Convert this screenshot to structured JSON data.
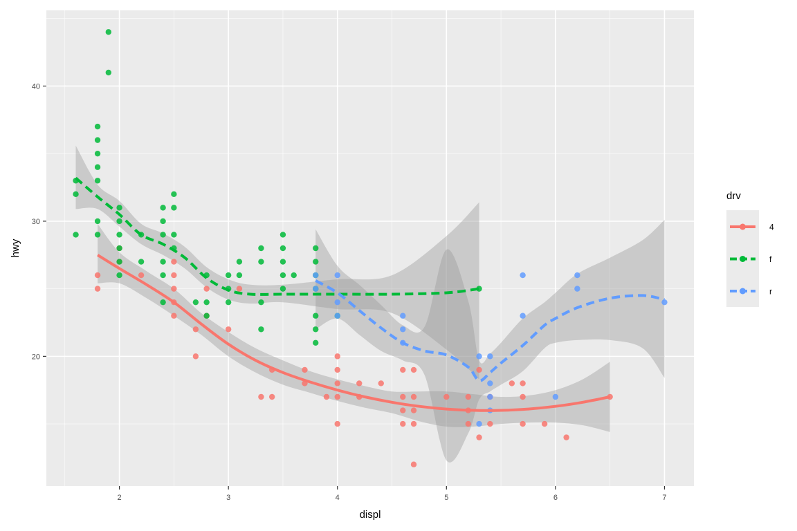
{
  "chart_data": {
    "type": "scatter",
    "xlabel": "displ",
    "ylabel": "hwy",
    "xlim": [
      1.33,
      7.27
    ],
    "ylim": [
      10.4,
      45.6
    ],
    "x_ticks": [
      2,
      3,
      4,
      5,
      6,
      7
    ],
    "y_ticks": [
      20,
      30,
      40
    ],
    "grid": true,
    "legend": {
      "title": "drv",
      "placement": "right",
      "entries": [
        {
          "label": "4",
          "color": "#F8766D",
          "dash": "solid"
        },
        {
          "label": "f",
          "color": "#00BA38",
          "dash": "dashed"
        },
        {
          "label": "r",
          "color": "#619CFF",
          "dash": "dashed"
        }
      ]
    },
    "band_color": "#999999",
    "series": [
      {
        "name": "4",
        "color": "#F8766D",
        "points": [
          [
            1.8,
            26
          ],
          [
            1.8,
            25
          ],
          [
            2.0,
            28
          ],
          [
            2.0,
            27
          ],
          [
            2.2,
            26
          ],
          [
            2.5,
            27
          ],
          [
            2.5,
            26
          ],
          [
            2.5,
            25
          ],
          [
            2.5,
            24
          ],
          [
            2.5,
            23
          ],
          [
            2.7,
            22
          ],
          [
            2.7,
            20
          ],
          [
            2.8,
            25
          ],
          [
            2.8,
            23
          ],
          [
            3.0,
            22
          ],
          [
            3.1,
            25
          ],
          [
            3.3,
            17
          ],
          [
            3.4,
            19
          ],
          [
            3.4,
            17
          ],
          [
            3.7,
            19
          ],
          [
            3.7,
            18
          ],
          [
            3.9,
            17
          ],
          [
            4.0,
            20
          ],
          [
            4.0,
            19
          ],
          [
            4.0,
            18
          ],
          [
            4.0,
            17
          ],
          [
            4.0,
            15
          ],
          [
            4.2,
            18
          ],
          [
            4.2,
            17
          ],
          [
            4.4,
            18
          ],
          [
            4.6,
            19
          ],
          [
            4.6,
            17
          ],
          [
            4.6,
            16
          ],
          [
            4.6,
            15
          ],
          [
            4.7,
            19
          ],
          [
            4.7,
            17
          ],
          [
            4.7,
            16
          ],
          [
            4.7,
            15
          ],
          [
            4.7,
            12
          ],
          [
            5.0,
            17
          ],
          [
            5.2,
            17
          ],
          [
            5.2,
            16
          ],
          [
            5.2,
            15
          ],
          [
            5.3,
            19
          ],
          [
            5.3,
            14
          ],
          [
            5.4,
            17
          ],
          [
            5.4,
            15
          ],
          [
            5.6,
            18
          ],
          [
            5.7,
            18
          ],
          [
            5.7,
            17
          ],
          [
            5.7,
            15
          ],
          [
            5.9,
            15
          ],
          [
            6.1,
            14
          ],
          [
            6.5,
            17
          ]
        ],
        "smooth": [
          [
            1.8,
            27.5
          ],
          [
            2.0,
            26.5
          ],
          [
            2.25,
            25.3
          ],
          [
            2.5,
            24.0
          ],
          [
            2.75,
            22.4
          ],
          [
            3.0,
            20.9
          ],
          [
            3.25,
            19.7
          ],
          [
            3.5,
            18.8
          ],
          [
            3.75,
            18.1
          ],
          [
            4.0,
            17.5
          ],
          [
            4.25,
            17.0
          ],
          [
            4.5,
            16.6
          ],
          [
            4.75,
            16.3
          ],
          [
            5.0,
            16.1
          ],
          [
            5.25,
            16.0
          ],
          [
            5.5,
            16.0
          ],
          [
            5.75,
            16.1
          ],
          [
            6.0,
            16.3
          ],
          [
            6.25,
            16.6
          ],
          [
            6.5,
            17.0
          ]
        ],
        "band": [
          [
            1.8,
            25.4,
            29.8
          ],
          [
            2.0,
            25.4,
            27.7
          ],
          [
            2.25,
            24.3,
            26.3
          ],
          [
            2.5,
            23.0,
            25.0
          ],
          [
            2.75,
            21.6,
            23.2
          ],
          [
            3.0,
            20.0,
            21.8
          ],
          [
            3.25,
            18.8,
            20.6
          ],
          [
            3.5,
            17.9,
            19.7
          ],
          [
            3.75,
            17.3,
            18.9
          ],
          [
            4.0,
            16.7,
            18.3
          ],
          [
            4.25,
            16.2,
            17.8
          ],
          [
            4.5,
            15.8,
            17.4
          ],
          [
            4.75,
            15.2,
            17.4
          ],
          [
            5.0,
            14.8,
            17.4
          ],
          [
            5.25,
            14.8,
            17.2
          ],
          [
            5.5,
            15.0,
            17.0
          ],
          [
            5.75,
            15.1,
            17.1
          ],
          [
            6.0,
            15.1,
            17.5
          ],
          [
            6.25,
            14.9,
            18.3
          ],
          [
            6.5,
            14.4,
            19.6
          ]
        ]
      },
      {
        "name": "f",
        "color": "#00BA38",
        "points": [
          [
            1.6,
            33
          ],
          [
            1.6,
            32
          ],
          [
            1.6,
            29
          ],
          [
            1.8,
            37
          ],
          [
            1.8,
            36
          ],
          [
            1.8,
            35
          ],
          [
            1.8,
            34
          ],
          [
            1.8,
            33
          ],
          [
            1.8,
            30
          ],
          [
            1.8,
            29
          ],
          [
            1.9,
            44
          ],
          [
            1.9,
            41
          ],
          [
            2.0,
            31
          ],
          [
            2.0,
            30
          ],
          [
            2.0,
            29
          ],
          [
            2.0,
            28
          ],
          [
            2.0,
            27
          ],
          [
            2.0,
            26
          ],
          [
            2.2,
            29
          ],
          [
            2.2,
            27
          ],
          [
            2.4,
            31
          ],
          [
            2.4,
            30
          ],
          [
            2.4,
            29
          ],
          [
            2.4,
            27
          ],
          [
            2.4,
            26
          ],
          [
            2.4,
            24
          ],
          [
            2.5,
            32
          ],
          [
            2.5,
            31
          ],
          [
            2.5,
            29
          ],
          [
            2.5,
            28
          ],
          [
            2.7,
            24
          ],
          [
            2.8,
            26
          ],
          [
            2.8,
            24
          ],
          [
            2.8,
            23
          ],
          [
            3.0,
            26
          ],
          [
            3.0,
            25
          ],
          [
            3.0,
            24
          ],
          [
            3.1,
            27
          ],
          [
            3.1,
            26
          ],
          [
            3.3,
            28
          ],
          [
            3.3,
            27
          ],
          [
            3.3,
            24
          ],
          [
            3.3,
            22
          ],
          [
            3.5,
            29
          ],
          [
            3.5,
            28
          ],
          [
            3.5,
            27
          ],
          [
            3.5,
            26
          ],
          [
            3.5,
            25
          ],
          [
            3.6,
            26
          ],
          [
            3.8,
            28
          ],
          [
            3.8,
            27
          ],
          [
            3.8,
            26
          ],
          [
            3.8,
            25
          ],
          [
            3.8,
            23
          ],
          [
            3.8,
            22
          ],
          [
            3.8,
            21
          ],
          [
            4.0,
            23
          ],
          [
            5.3,
            25
          ]
        ],
        "smooth": [
          [
            1.6,
            33.2
          ],
          [
            1.8,
            31.8
          ],
          [
            2.0,
            30.5
          ],
          [
            2.2,
            29.0
          ],
          [
            2.4,
            28.3
          ],
          [
            2.6,
            27.3
          ],
          [
            2.8,
            25.8
          ],
          [
            3.0,
            24.9
          ],
          [
            3.2,
            24.6
          ],
          [
            3.5,
            24.6
          ],
          [
            4.0,
            24.6
          ],
          [
            4.5,
            24.6
          ],
          [
            5.0,
            24.7
          ],
          [
            5.3,
            25.0
          ]
        ],
        "band": [
          [
            1.6,
            30.9,
            35.6
          ],
          [
            1.8,
            30.9,
            32.7
          ],
          [
            2.0,
            29.6,
            31.5
          ],
          [
            2.2,
            28.3,
            29.8
          ],
          [
            2.4,
            27.5,
            29.1
          ],
          [
            2.6,
            26.5,
            28.1
          ],
          [
            2.8,
            25.1,
            26.6
          ],
          [
            3.0,
            24.2,
            25.7
          ],
          [
            3.2,
            23.9,
            25.3
          ],
          [
            3.5,
            24.0,
            25.3
          ],
          [
            4.0,
            23.5,
            25.7
          ],
          [
            4.5,
            23.2,
            26.0
          ],
          [
            5.0,
            20.5,
            28.9
          ],
          [
            5.3,
            18.3,
            31.4
          ]
        ]
      },
      {
        "name": "r",
        "color": "#619CFF",
        "points": [
          [
            3.8,
            26
          ],
          [
            3.8,
            25
          ],
          [
            4.0,
            26
          ],
          [
            4.0,
            24
          ],
          [
            4.0,
            23
          ],
          [
            4.6,
            23
          ],
          [
            4.6,
            22
          ],
          [
            4.6,
            21
          ],
          [
            5.3,
            20
          ],
          [
            5.3,
            15
          ],
          [
            5.4,
            20
          ],
          [
            5.4,
            18
          ],
          [
            5.4,
            17
          ],
          [
            5.4,
            16
          ],
          [
            5.7,
            26
          ],
          [
            5.7,
            23
          ],
          [
            6.0,
            17
          ],
          [
            6.2,
            26
          ],
          [
            6.2,
            25
          ],
          [
            7.0,
            24
          ]
        ],
        "smooth": [
          [
            3.8,
            25.6
          ],
          [
            4.0,
            24.7
          ],
          [
            4.2,
            23.4
          ],
          [
            4.4,
            22.1
          ],
          [
            4.6,
            21.0
          ],
          [
            4.8,
            20.4
          ],
          [
            5.0,
            20.1
          ],
          [
            5.2,
            19.2
          ],
          [
            5.3,
            18.2
          ],
          [
            5.4,
            18.8
          ],
          [
            5.5,
            19.5
          ],
          [
            5.7,
            20.8
          ],
          [
            5.9,
            22.3
          ],
          [
            6.0,
            22.8
          ],
          [
            6.2,
            23.6
          ],
          [
            6.5,
            24.3
          ],
          [
            6.8,
            24.5
          ],
          [
            7.0,
            24.2
          ]
        ],
        "band": [
          [
            3.8,
            22.0,
            29.4
          ],
          [
            4.0,
            22.8,
            26.7
          ],
          [
            4.2,
            21.6,
            25.3
          ],
          [
            4.4,
            20.4,
            23.8
          ],
          [
            4.6,
            19.7,
            22.3
          ],
          [
            4.8,
            18.6,
            22.2
          ],
          [
            5.0,
            12.3,
            27.9
          ],
          [
            5.2,
            14.3,
            24.1
          ],
          [
            5.3,
            16.8,
            19.7
          ],
          [
            5.4,
            17.4,
            20.2
          ],
          [
            5.5,
            17.9,
            21.0
          ],
          [
            5.7,
            18.9,
            22.8
          ],
          [
            5.9,
            20.6,
            24.0
          ],
          [
            6.0,
            21.0,
            24.7
          ],
          [
            6.2,
            21.2,
            26.1
          ],
          [
            6.5,
            21.2,
            27.3
          ],
          [
            6.8,
            20.6,
            28.6
          ],
          [
            7.0,
            18.4,
            30.1
          ]
        ]
      }
    ]
  }
}
